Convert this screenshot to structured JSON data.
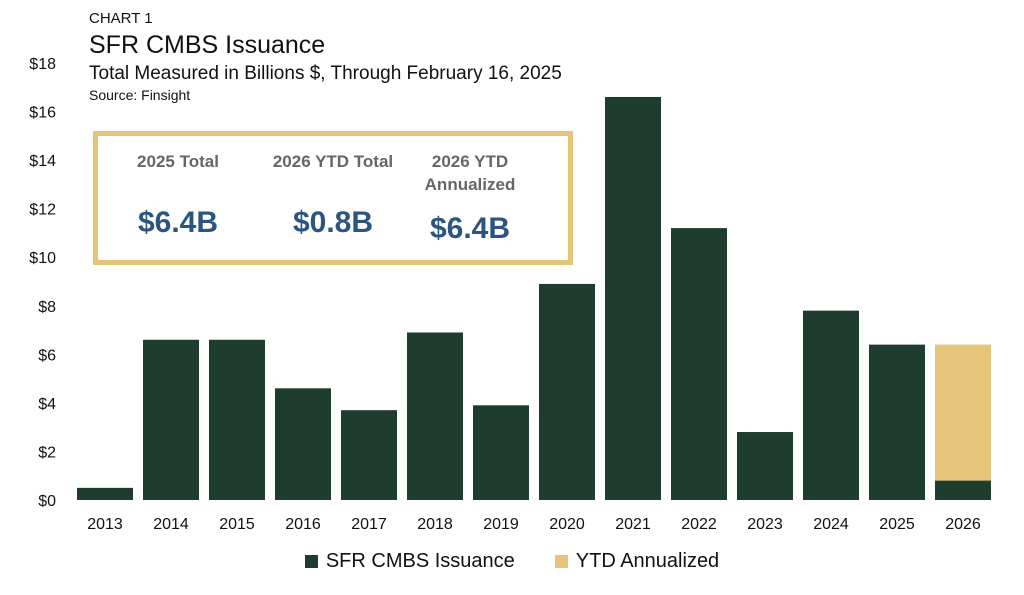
{
  "header": {
    "label": "CHART 1",
    "title": "SFR CMBS Issuance",
    "subtitle": "Total Measured in Billions $, Through February 16, 2025",
    "source": "Source: Finsight"
  },
  "summary": [
    {
      "heading": "2025 Total",
      "value": "$6.4B"
    },
    {
      "heading": "2026 YTD Total",
      "value": "$0.8B"
    },
    {
      "heading": "2026 YTD Annualized",
      "value": "$6.4B"
    }
  ],
  "colors": {
    "issuance": "#1e3d2f",
    "annualized": "#e6c47a",
    "accent": "#2a5580",
    "box_border": "#e6c47a"
  },
  "chart_data": {
    "type": "bar",
    "stacked": true,
    "title": "SFR CMBS Issuance",
    "ylim": [
      0,
      18
    ],
    "yticks": [
      0,
      2,
      4,
      6,
      8,
      10,
      12,
      14,
      16,
      18
    ],
    "ytick_labels": [
      "$0",
      "$2",
      "$4",
      "$6",
      "$8",
      "$10",
      "$12",
      "$14",
      "$16",
      "$18"
    ],
    "categories": [
      "2013",
      "2014",
      "2015",
      "2016",
      "2017",
      "2018",
      "2019",
      "2020",
      "2021",
      "2022",
      "2023",
      "2024",
      "2025",
      "2026"
    ],
    "series": [
      {
        "name": "SFR CMBS Issuance",
        "values": [
          0.5,
          6.6,
          6.6,
          4.6,
          3.7,
          6.9,
          3.9,
          8.9,
          16.6,
          11.2,
          2.8,
          7.8,
          6.4,
          0.8
        ]
      },
      {
        "name": "YTD Annualized",
        "values": [
          0,
          0,
          0,
          0,
          0,
          0,
          0,
          0,
          0,
          0,
          0,
          0,
          0,
          5.6
        ]
      }
    ],
    "grid": false,
    "legend": "bottom"
  }
}
